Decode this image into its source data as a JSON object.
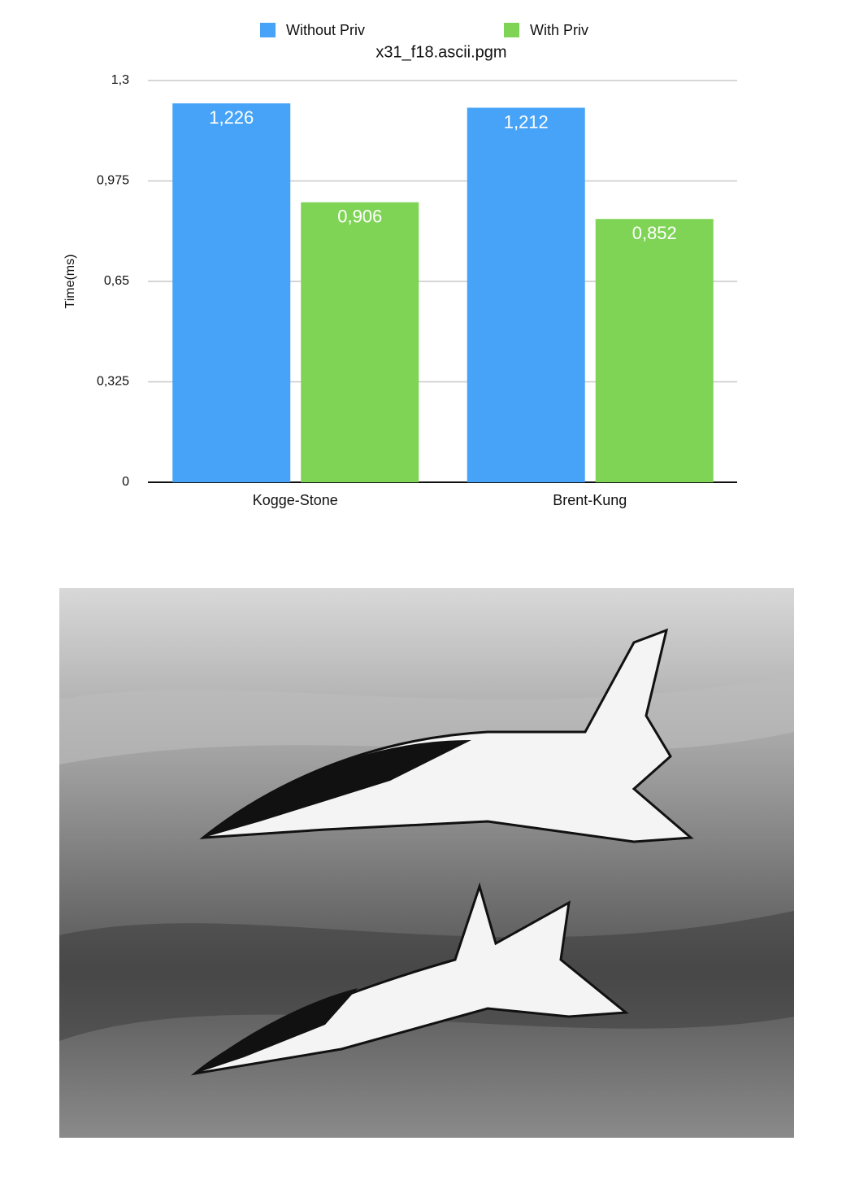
{
  "chart_data": {
    "type": "bar",
    "title": "x31_f18.ascii.pgm",
    "y_label": "Time(ms)",
    "categories": [
      "Kogge-Stone",
      "Brent-Kung"
    ],
    "series": [
      {
        "name": "Without Priv",
        "color": "#46a3f7",
        "values": [
          1.226,
          1.212
        ],
        "value_labels": [
          "1,226",
          "1,212"
        ]
      },
      {
        "name": "With Priv",
        "color": "#7fd456",
        "values": [
          0.906,
          0.852
        ],
        "value_labels": [
          "0,906",
          "0,852"
        ]
      }
    ],
    "ylim": [
      0,
      1.3
    ],
    "yticks": [
      0,
      {
        "value": 0.325,
        "label": "0,325"
      },
      {
        "value": 0.65,
        "label": "0,65"
      },
      {
        "value": 0.975,
        "label": "0,975"
      },
      {
        "value": 1.3,
        "label": "1,3"
      }
    ],
    "grid": true,
    "legend": "top"
  }
}
